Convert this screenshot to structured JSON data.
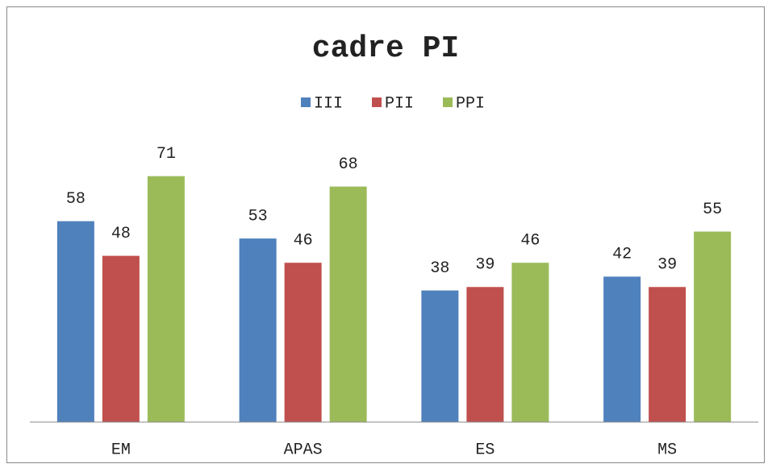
{
  "chart_data": {
    "type": "bar",
    "title": "cadre PI",
    "categories": [
      "EM",
      "APAS",
      "ES",
      "MS"
    ],
    "series": [
      {
        "name": "III",
        "color": "#4f81bd",
        "values": [
          58,
          53,
          38,
          42
        ]
      },
      {
        "name": "PII",
        "color": "#c0504d",
        "values": [
          48,
          46,
          39,
          39
        ]
      },
      {
        "name": "PPI",
        "color": "#9bbb59",
        "values": [
          71,
          68,
          46,
          55
        ]
      }
    ],
    "ylim": [
      0,
      80
    ],
    "legend": "top",
    "grid": false
  }
}
